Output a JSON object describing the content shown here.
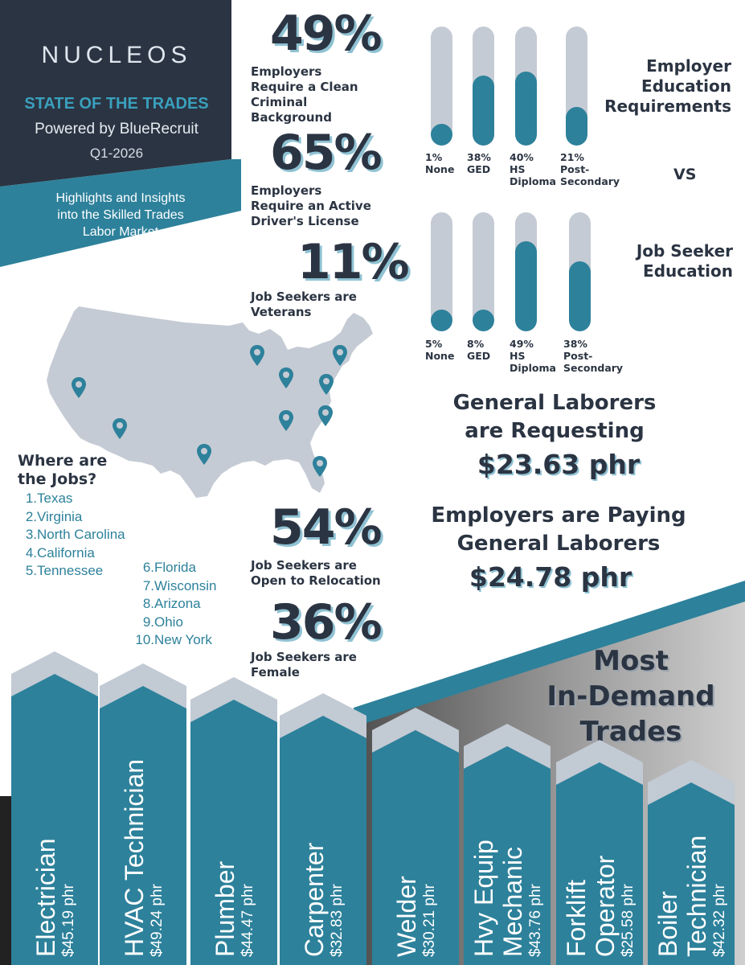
{
  "header": {
    "logo_text": "NUCLEOS",
    "title": "STATE OF THE TRADES",
    "subtitle": "Powered by BlueRecruit",
    "quarter": "Q1-2026",
    "tagline_lines": [
      "Highlights and Insights",
      "into the Skilled Trades",
      "Labor Market"
    ]
  },
  "stats": {
    "criminal": {
      "pct": "49%",
      "lines": [
        "Employers",
        "Require a Clean",
        "Criminal",
        "Background"
      ]
    },
    "license": {
      "pct": "65%",
      "lines": [
        "Employers",
        "Require an Active",
        "Driver's License"
      ]
    },
    "veterans": {
      "pct": "11%",
      "lines": [
        "Job Seekers are",
        "Veterans"
      ]
    },
    "relocation": {
      "pct": "54%",
      "lines": [
        "Job Seekers are",
        "Open to Relocation"
      ]
    },
    "female": {
      "pct": "36%",
      "lines": [
        "Job Seekers are",
        "Female"
      ]
    }
  },
  "employer_education": {
    "heading_lines": [
      "Employer",
      "Education",
      "Requirements"
    ],
    "bars": [
      {
        "pct_value": 1,
        "pct_label": "1%",
        "label_lines": [
          "None"
        ]
      },
      {
        "pct_value": 38,
        "pct_label": "38%",
        "label_lines": [
          "GED"
        ]
      },
      {
        "pct_value": 40,
        "pct_label": "40%",
        "label_lines": [
          "HS",
          "Diploma"
        ]
      },
      {
        "pct_value": 21,
        "pct_label": "21%",
        "label_lines": [
          "Post-",
          "Secondary"
        ]
      }
    ]
  },
  "vs_text": "VS",
  "seeker_education": {
    "heading_lines": [
      "Job Seeker",
      "Education"
    ],
    "bars": [
      {
        "pct_value": 5,
        "pct_label": "5%",
        "label_lines": [
          "None"
        ]
      },
      {
        "pct_value": 8,
        "pct_label": "8%",
        "label_lines": [
          "GED"
        ]
      },
      {
        "pct_value": 49,
        "pct_label": "49%",
        "label_lines": [
          "HS",
          "Diploma"
        ]
      },
      {
        "pct_value": 38,
        "pct_label": "38%",
        "label_lines": [
          "Post-",
          "Secondary"
        ]
      }
    ]
  },
  "wages": {
    "requesting_lines": [
      "General Laborers",
      "are Requesting"
    ],
    "requesting_value": "$23.63 phr",
    "paying_lines": [
      "Employers are Paying",
      "General Laborers"
    ],
    "paying_value": "$24.78 phr"
  },
  "jobs": {
    "title_lines": [
      "Where are",
      "the Jobs?"
    ],
    "list": [
      {
        "num": "1.",
        "state": "Texas"
      },
      {
        "num": "2.",
        "state": "Virginia"
      },
      {
        "num": "3.",
        "state": "North Carolina"
      },
      {
        "num": "4.",
        "state": "California"
      },
      {
        "num": "5.",
        "state": "Tennessee"
      },
      {
        "num": "6.",
        "state": "Florida"
      },
      {
        "num": "7.",
        "state": "Wisconsin"
      },
      {
        "num": "8.",
        "state": "Arizona"
      },
      {
        "num": "9.",
        "state": "Ohio"
      },
      {
        "num": "10.",
        "state": "New York"
      }
    ]
  },
  "trades": {
    "heading_lines": [
      "Most",
      "In-Demand",
      "Trades"
    ],
    "items": [
      {
        "name_lines": [
          "Electrician"
        ],
        "wage": "$45.19 phr"
      },
      {
        "name_lines": [
          "HVAC Technician"
        ],
        "wage": "$49.24 phr"
      },
      {
        "name_lines": [
          "Plumber"
        ],
        "wage": "$44.47 phr"
      },
      {
        "name_lines": [
          "Carpenter"
        ],
        "wage": "$32.83 phr"
      },
      {
        "name_lines": [
          "Welder"
        ],
        "wage": "$30.21 phr"
      },
      {
        "name_lines": [
          "Hvy Equip",
          "Mechanic"
        ],
        "wage": "$43.76 phr"
      },
      {
        "name_lines": [
          "Forklift",
          "Operator"
        ],
        "wage": "$25.58 phr"
      },
      {
        "name_lines": [
          "Boiler",
          "Technician"
        ],
        "wage": "$42.32 phr"
      }
    ]
  },
  "colors": {
    "navy": "#2b3442",
    "teal": "#2d819b",
    "light_teal": "#3aa0bd",
    "gray_track": "#c5cbd4",
    "bar_cap": "#c2cad4"
  }
}
